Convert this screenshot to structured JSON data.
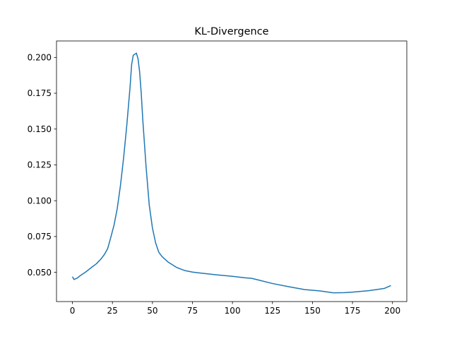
{
  "chart_data": {
    "type": "line",
    "title": "KL-Divergence",
    "xlabel": "",
    "ylabel": "",
    "xlim": [
      -9.95,
      208.95
    ],
    "ylim": [
      0.0296,
      0.2115
    ],
    "grid": false,
    "x_ticks": [
      0,
      25,
      50,
      75,
      100,
      125,
      150,
      175,
      200
    ],
    "y_ticks": [
      0.05,
      0.075,
      0.1,
      0.125,
      0.15,
      0.175,
      0.2
    ],
    "x_tick_labels": [
      "0",
      "25",
      "50",
      "75",
      "100",
      "125",
      "150",
      "175",
      "200"
    ],
    "y_tick_labels": [
      "0.050",
      "0.075",
      "0.100",
      "0.125",
      "0.150",
      "0.175",
      "0.200"
    ],
    "series": [
      {
        "color": "#1f77b4",
        "points": [
          [
            0,
            0.047
          ],
          [
            1,
            0.045
          ],
          [
            3,
            0.046
          ],
          [
            5,
            0.0478
          ],
          [
            8,
            0.05
          ],
          [
            12,
            0.0535
          ],
          [
            15,
            0.056
          ],
          [
            18,
            0.0595
          ],
          [
            20,
            0.0625
          ],
          [
            22,
            0.0665
          ],
          [
            24,
            0.0745
          ],
          [
            26,
            0.083
          ],
          [
            28,
            0.0945
          ],
          [
            30,
            0.1105
          ],
          [
            32,
            0.13
          ],
          [
            34,
            0.153
          ],
          [
            36,
            0.179
          ],
          [
            37,
            0.195
          ],
          [
            38,
            0.2015
          ],
          [
            40,
            0.203
          ],
          [
            41,
            0.199
          ],
          [
            42,
            0.19
          ],
          [
            43,
            0.175
          ],
          [
            44,
            0.156
          ],
          [
            46,
            0.124
          ],
          [
            48,
            0.097
          ],
          [
            50,
            0.081
          ],
          [
            52,
            0.0705
          ],
          [
            54,
            0.064
          ],
          [
            56,
            0.061
          ],
          [
            60,
            0.057
          ],
          [
            65,
            0.0535
          ],
          [
            70,
            0.0513
          ],
          [
            75,
            0.0502
          ],
          [
            80,
            0.0495
          ],
          [
            90,
            0.0483
          ],
          [
            100,
            0.0472
          ],
          [
            108,
            0.0462
          ],
          [
            112,
            0.0458
          ],
          [
            115,
            0.045
          ],
          [
            125,
            0.0422
          ],
          [
            135,
            0.04
          ],
          [
            145,
            0.038
          ],
          [
            155,
            0.037
          ],
          [
            163,
            0.0357
          ],
          [
            170,
            0.0358
          ],
          [
            175,
            0.0362
          ],
          [
            180,
            0.0367
          ],
          [
            185,
            0.0372
          ],
          [
            190,
            0.038
          ],
          [
            195,
            0.0388
          ],
          [
            199,
            0.0408
          ]
        ]
      }
    ]
  }
}
